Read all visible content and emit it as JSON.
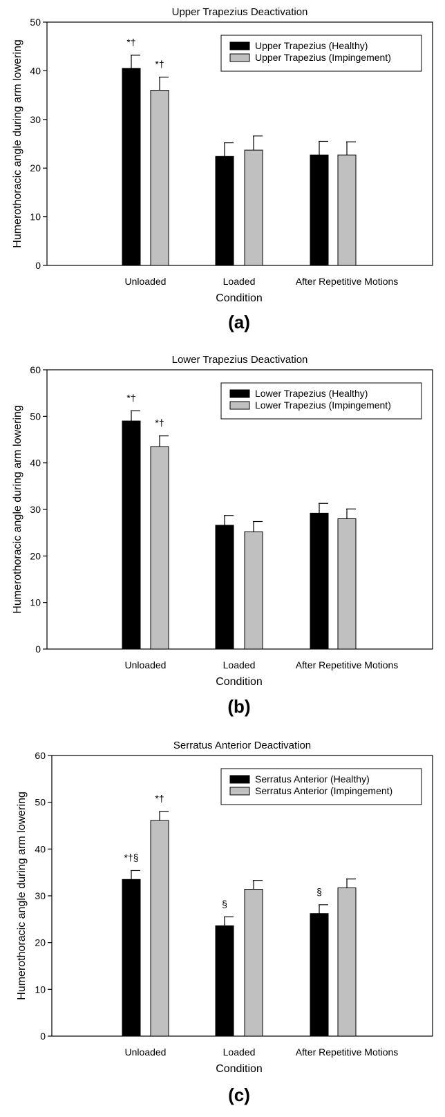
{
  "chart_data": [
    {
      "type": "bar",
      "title": "Upper Trapezius Deactivation",
      "xlabel": "Condition",
      "ylabel": "Humerothoracic angle during arm lowering",
      "panel_label": "(a)",
      "categories": [
        "Unloaded",
        "Loaded",
        "After Repetitive Motions"
      ],
      "ylim": [
        0,
        50
      ],
      "yticks": [
        0,
        10,
        20,
        30,
        40,
        50
      ],
      "legend_position": "top-right",
      "series": [
        {
          "name": "Upper Trapezius (Healthy)",
          "color": "#000000",
          "values": [
            40.5,
            22.4,
            22.7
          ],
          "errors": [
            2.7,
            2.8,
            2.8
          ],
          "annotations": [
            "*†",
            "",
            ""
          ]
        },
        {
          "name": "Upper Trapezius (Impingement)",
          "color": "#c0c0c0",
          "values": [
            36.0,
            23.7,
            22.7
          ],
          "errors": [
            2.7,
            2.9,
            2.7
          ],
          "annotations": [
            "*†",
            "",
            ""
          ]
        }
      ]
    },
    {
      "type": "bar",
      "title": "Lower Trapezius Deactivation",
      "xlabel": "Condition",
      "ylabel": "Humerothoracic angle during arm lowering",
      "panel_label": "(b)",
      "categories": [
        "Unloaded",
        "Loaded",
        "After Repetitive Motions"
      ],
      "ylim": [
        0,
        60
      ],
      "yticks": [
        0,
        10,
        20,
        30,
        40,
        50,
        60
      ],
      "legend_position": "top-right",
      "series": [
        {
          "name": "Lower Trapezius (Healthy)",
          "color": "#000000",
          "values": [
            49.0,
            26.6,
            29.2
          ],
          "errors": [
            2.2,
            2.1,
            2.1
          ],
          "annotations": [
            "*†",
            "",
            ""
          ]
        },
        {
          "name": "Lower Trapezius (Impingement)",
          "color": "#c0c0c0",
          "values": [
            43.5,
            25.2,
            28.0
          ],
          "errors": [
            2.3,
            2.2,
            2.1
          ],
          "annotations": [
            "*†",
            "",
            ""
          ]
        }
      ]
    },
    {
      "type": "bar",
      "title": "Serratus Anterior Deactivation",
      "xlabel": "Condition",
      "ylabel": "Humerothoracic angle during arm lowering",
      "panel_label": "(c)",
      "categories": [
        "Unloaded",
        "Loaded",
        "After Repetitive Motions"
      ],
      "ylim": [
        0,
        60
      ],
      "yticks": [
        0,
        10,
        20,
        30,
        40,
        50,
        60
      ],
      "legend_position": "top-right",
      "series": [
        {
          "name": "Serratus Anterior (Healthy)",
          "color": "#000000",
          "values": [
            33.5,
            23.6,
            26.2
          ],
          "errors": [
            1.9,
            1.9,
            1.9
          ],
          "annotations": [
            "*†§",
            "§",
            "§"
          ]
        },
        {
          "name": "Serratus Anterior (Impingement)",
          "color": "#c0c0c0",
          "values": [
            46.1,
            31.4,
            31.7
          ],
          "errors": [
            1.9,
            1.9,
            1.9
          ],
          "annotations": [
            "*†",
            "",
            ""
          ]
        }
      ]
    }
  ]
}
